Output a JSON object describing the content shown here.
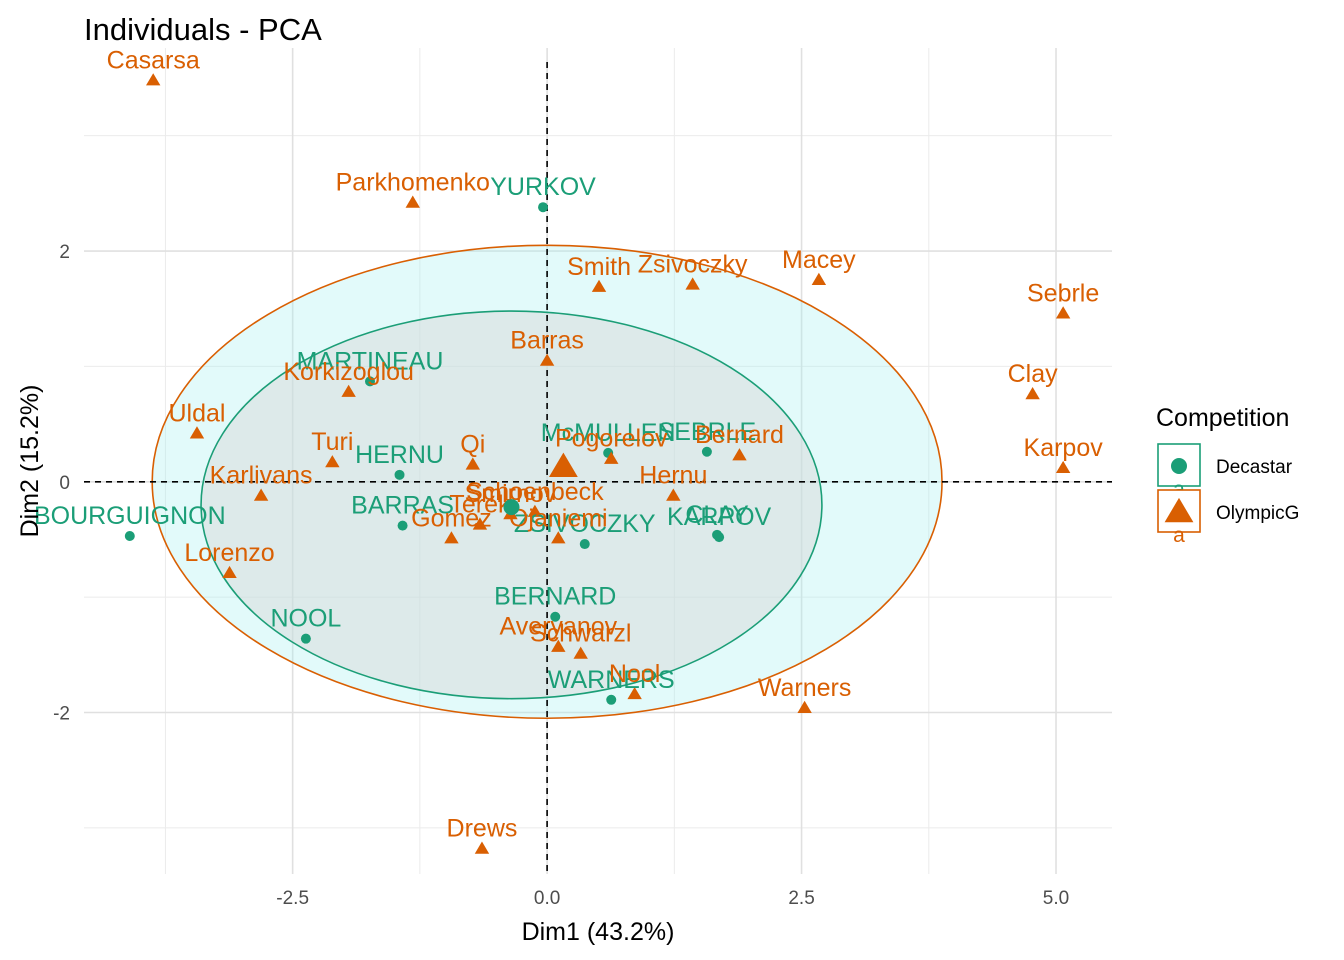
{
  "chart_data": {
    "type": "scatter",
    "title": "Individuals - PCA",
    "xlabel": "Dim1 (43.2%)",
    "ylabel": "Dim2 (15.2%)",
    "xlim": [
      -4.55,
      5.55
    ],
    "ylim": [
      -3.4,
      3.76
    ],
    "x_ticks": [
      -2.5,
      0.0,
      2.5,
      5.0
    ],
    "x_tick_labels": [
      "-2.5",
      "0.0",
      "2.5",
      "5.0"
    ],
    "y_ticks": [
      -2,
      0,
      2
    ],
    "y_tick_labels": [
      "-2",
      "0",
      "2"
    ],
    "grid": true,
    "reference_lines": {
      "x": 0,
      "y": 0,
      "style": "dashed"
    },
    "legend": {
      "title": "Competition",
      "placement": "right",
      "entries": [
        "Decastar",
        "OlympicG"
      ]
    },
    "colors": {
      "Decastar": "#1b9e77",
      "OlympicG": "#d95f02"
    },
    "series": [
      {
        "name": "Decastar",
        "marker": "circle",
        "points": [
          {
            "label": "YURKOV",
            "x": -0.04,
            "y": 2.38
          },
          {
            "label": "MARTINEAU",
            "x": -1.74,
            "y": 0.87
          },
          {
            "label": "HERNU",
            "x": -1.45,
            "y": 0.06
          },
          {
            "label": "BARRAS",
            "x": -1.42,
            "y": -0.38
          },
          {
            "label": "BOURGUIGNON",
            "x": -4.1,
            "y": -0.47
          },
          {
            "label": "NOOL",
            "x": -2.37,
            "y": -1.36
          },
          {
            "label": "McMULLEN",
            "x": 0.6,
            "y": 0.25
          },
          {
            "label": "SEBRLE",
            "x": 1.57,
            "y": 0.26
          },
          {
            "label": "CLAY",
            "x": 1.67,
            "y": -0.46
          },
          {
            "label": "KARPOV",
            "x": 1.69,
            "y": -0.48
          },
          {
            "label": "ZSIVOCZKY",
            "x": 0.37,
            "y": -0.54
          },
          {
            "label": "BERNARD",
            "x": 0.08,
            "y": -1.17
          },
          {
            "label": "WARNERS",
            "x": 0.63,
            "y": -1.89
          }
        ]
      },
      {
        "name": "OlympicG",
        "marker": "triangle",
        "points": [
          {
            "label": "Casarsa",
            "x": -3.87,
            "y": 3.48
          },
          {
            "label": "Parkhomenko",
            "x": -1.32,
            "y": 2.42
          },
          {
            "label": "Smith",
            "x": 0.51,
            "y": 1.69
          },
          {
            "label": "Zsivoczky",
            "x": 1.43,
            "y": 1.71
          },
          {
            "label": "Macey",
            "x": 2.67,
            "y": 1.75
          },
          {
            "label": "Sebrle",
            "x": 5.07,
            "y": 1.46
          },
          {
            "label": "Clay",
            "x": 4.77,
            "y": 0.76
          },
          {
            "label": "Karpov",
            "x": 5.07,
            "y": 0.12
          },
          {
            "label": "Barras",
            "x": 0.0,
            "y": 1.05
          },
          {
            "label": "Korkizoglou",
            "x": -1.95,
            "y": 0.78
          },
          {
            "label": "Uldal",
            "x": -3.44,
            "y": 0.42
          },
          {
            "label": "Turi",
            "x": -2.11,
            "y": 0.17
          },
          {
            "label": "Qi",
            "x": -0.73,
            "y": 0.15
          },
          {
            "label": "Pogorelov",
            "x": 0.63,
            "y": 0.2
          },
          {
            "label": "Bernard",
            "x": 1.89,
            "y": 0.23
          },
          {
            "label": "Hernu",
            "x": 1.24,
            "y": -0.12
          },
          {
            "label": "Karlivans",
            "x": -2.81,
            "y": -0.12
          },
          {
            "label": "Terek",
            "x": -0.66,
            "y": -0.37
          },
          {
            "label": "Smirnov",
            "x": -0.36,
            "y": -0.28
          },
          {
            "label": "Gomez",
            "x": -0.94,
            "y": -0.49
          },
          {
            "label": "Schoenbeck",
            "x": -0.12,
            "y": -0.26
          },
          {
            "label": "Nool",
            "x": 0.86,
            "y": -1.84
          },
          {
            "label": "Ojaniemi",
            "x": 0.11,
            "y": -0.49
          },
          {
            "label": "Lorenzo",
            "x": -3.12,
            "y": -0.79
          },
          {
            "label": "Averyanov",
            "x": 0.11,
            "y": -1.43
          },
          {
            "label": "Schwarzl",
            "x": 0.33,
            "y": -1.49
          },
          {
            "label": "Warners",
            "x": 2.53,
            "y": -1.96
          },
          {
            "label": "Drews",
            "x": -0.64,
            "y": -3.18
          }
        ]
      }
    ],
    "centroids": [
      {
        "name": "Decastar",
        "x": -0.35,
        "y": -0.22
      },
      {
        "name": "OlympicG",
        "x": 0.16,
        "y": 0.13
      }
    ],
    "ellipses": [
      {
        "name": "Decastar",
        "cx": -0.35,
        "cy": -0.2,
        "rx": 3.05,
        "ry": 1.68
      },
      {
        "name": "OlympicG",
        "cx": 0.0,
        "cy": 0.0,
        "rx": 3.88,
        "ry": 2.05
      }
    ]
  }
}
